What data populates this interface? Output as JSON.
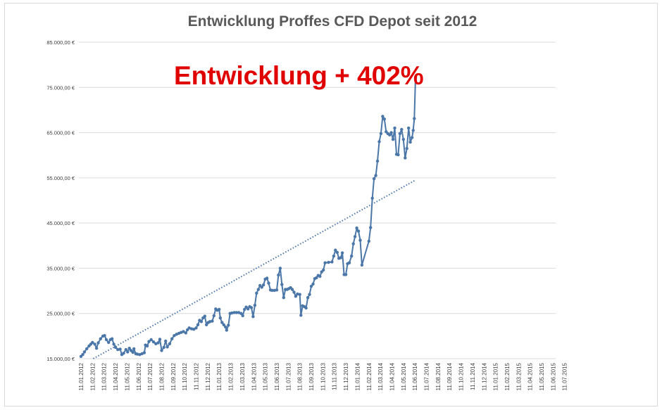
{
  "chart_data": {
    "type": "line",
    "title": "Entwicklung Proffes CFD Depot seit 2012",
    "annotation": "Entwicklung + 402%",
    "xlabel": "",
    "ylabel": "",
    "ylim": [
      15000,
      85000
    ],
    "grid": true,
    "legend": "none",
    "y_ticks": [
      15000,
      25000,
      35000,
      45000,
      55000,
      65000,
      75000,
      85000
    ],
    "y_tick_labels": [
      "15.000,00 €",
      "25.000,00 €",
      "35.000,00 €",
      "45.000,00 €",
      "55.000,00 €",
      "65.000,00 €",
      "75.000,00 €",
      "85.000,00 €"
    ],
    "x_tick_labels": [
      "11.01.2012",
      "11.02.2012",
      "11.03.2012",
      "11.04.2012",
      "11.05.2012",
      "11.06.2012",
      "11.07.2012",
      "11.08.2012",
      "11.09.2012",
      "11.10.2012",
      "11.11.2012",
      "11.12.2012",
      "11.01.2013",
      "11.02.2013",
      "11.03.2013",
      "11.04.2013",
      "11.05.2013",
      "11.06.2013",
      "11.07.2013",
      "11.08.2013",
      "11.09.2013",
      "11.10.2013",
      "11.11.2013",
      "11.12.2013",
      "11.01.2014",
      "11.02.2014",
      "11.03.2014",
      "11.04.2014",
      "11.05.2014",
      "11.06.2014",
      "11.07.2014",
      "11.08.2014",
      "11.09.2014",
      "11.10.2014",
      "11.11.2014",
      "11.12.2014",
      "11.01.2015",
      "11.02.2015",
      "11.03.2015",
      "11.04.2015",
      "11.05.2015",
      "11.06.2015",
      "11.07.2015"
    ],
    "series": [
      {
        "color": "#4a76a8",
        "points": [
          [
            0,
            15500
          ],
          [
            0.15,
            15900
          ],
          [
            0.3,
            16500
          ],
          [
            0.5,
            17200
          ],
          [
            0.7,
            17800
          ],
          [
            0.85,
            18200
          ],
          [
            1.0,
            18600
          ],
          [
            1.2,
            18200
          ],
          [
            1.35,
            17300
          ],
          [
            1.5,
            18500
          ],
          [
            1.7,
            19400
          ],
          [
            1.9,
            20000
          ],
          [
            2.05,
            20100
          ],
          [
            2.2,
            19200
          ],
          [
            2.4,
            18600
          ],
          [
            2.55,
            19200
          ],
          [
            2.7,
            19400
          ],
          [
            2.85,
            18200
          ],
          [
            3.0,
            17500
          ],
          [
            3.2,
            17000
          ],
          [
            3.4,
            17100
          ],
          [
            3.55,
            15900
          ],
          [
            3.7,
            16200
          ],
          [
            3.9,
            17000
          ],
          [
            4.05,
            16500
          ],
          [
            4.2,
            17300
          ],
          [
            4.35,
            16800
          ],
          [
            4.5,
            16400
          ],
          [
            4.6,
            17200
          ],
          [
            4.75,
            16100
          ],
          [
            4.9,
            16000
          ],
          [
            5.1,
            15900
          ],
          [
            5.3,
            16100
          ],
          [
            5.5,
            16300
          ],
          [
            5.6,
            18000
          ],
          [
            5.75,
            17800
          ],
          [
            5.9,
            18800
          ],
          [
            6.1,
            19200
          ],
          [
            6.3,
            18700
          ],
          [
            6.5,
            18300
          ],
          [
            6.7,
            18500
          ],
          [
            6.85,
            19300
          ],
          [
            7.0,
            16800
          ],
          [
            7.2,
            17500
          ],
          [
            7.35,
            18900
          ],
          [
            7.5,
            17600
          ],
          [
            7.7,
            18300
          ],
          [
            7.9,
            19400
          ],
          [
            8.1,
            20100
          ],
          [
            8.3,
            20400
          ],
          [
            8.5,
            20600
          ],
          [
            8.7,
            20800
          ],
          [
            8.9,
            21000
          ],
          [
            9.1,
            20700
          ],
          [
            9.25,
            21400
          ],
          [
            9.4,
            21800
          ],
          [
            9.6,
            21600
          ],
          [
            9.8,
            21500
          ],
          [
            10.0,
            21800
          ],
          [
            10.15,
            22500
          ],
          [
            10.3,
            23500
          ],
          [
            10.45,
            23200
          ],
          [
            10.6,
            24000
          ],
          [
            10.75,
            24400
          ],
          [
            10.9,
            22500
          ],
          [
            11.05,
            23000
          ],
          [
            11.2,
            23200
          ],
          [
            11.4,
            23300
          ],
          [
            11.55,
            24500
          ],
          [
            11.7,
            26000
          ],
          [
            11.85,
            25700
          ],
          [
            12.0,
            25900
          ],
          [
            12.1,
            24000
          ],
          [
            12.25,
            23000
          ],
          [
            12.4,
            22500
          ],
          [
            12.55,
            22000
          ],
          [
            12.65,
            21300
          ],
          [
            12.8,
            22400
          ],
          [
            12.95,
            25000
          ],
          [
            13.1,
            25100
          ],
          [
            13.3,
            25200
          ],
          [
            13.5,
            25200
          ],
          [
            13.7,
            25200
          ],
          [
            13.9,
            25000
          ],
          [
            14.05,
            24500
          ],
          [
            14.2,
            25900
          ],
          [
            14.35,
            26400
          ],
          [
            14.5,
            26000
          ],
          [
            14.65,
            26500
          ],
          [
            14.8,
            26300
          ],
          [
            14.95,
            24300
          ],
          [
            15.1,
            26800
          ],
          [
            15.25,
            29500
          ],
          [
            15.4,
            30300
          ],
          [
            15.55,
            31200
          ],
          [
            15.7,
            30800
          ],
          [
            15.85,
            31300
          ],
          [
            16.0,
            32600
          ],
          [
            16.15,
            32800
          ],
          [
            16.3,
            31700
          ],
          [
            16.45,
            30200
          ],
          [
            16.6,
            30100
          ],
          [
            16.8,
            30100
          ],
          [
            17.0,
            30200
          ],
          [
            17.15,
            33500
          ],
          [
            17.3,
            35000
          ],
          [
            17.45,
            31400
          ],
          [
            17.6,
            28500
          ],
          [
            17.75,
            30300
          ],
          [
            17.9,
            30300
          ],
          [
            18.05,
            30500
          ],
          [
            18.2,
            30700
          ],
          [
            18.35,
            30300
          ],
          [
            18.5,
            29700
          ],
          [
            18.65,
            28800
          ],
          [
            18.8,
            29300
          ],
          [
            19.0,
            29200
          ],
          [
            19.1,
            24600
          ],
          [
            19.25,
            26700
          ],
          [
            19.4,
            26500
          ],
          [
            19.55,
            26200
          ],
          [
            19.7,
            28500
          ],
          [
            19.85,
            29200
          ],
          [
            20.0,
            31000
          ],
          [
            20.15,
            31500
          ],
          [
            20.3,
            32700
          ],
          [
            20.45,
            32900
          ],
          [
            20.6,
            33400
          ],
          [
            20.75,
            33200
          ],
          [
            20.9,
            34200
          ],
          [
            21.05,
            34600
          ],
          [
            21.2,
            36200
          ],
          [
            21.5,
            36300
          ],
          [
            21.8,
            36400
          ],
          [
            21.95,
            37700
          ],
          [
            22.1,
            39000
          ],
          [
            22.25,
            38500
          ],
          [
            22.4,
            37200
          ],
          [
            22.55,
            37300
          ],
          [
            22.7,
            38400
          ],
          [
            22.85,
            33600
          ],
          [
            23.0,
            33600
          ],
          [
            23.15,
            36000
          ],
          [
            23.3,
            36200
          ],
          [
            23.5,
            37700
          ],
          [
            23.65,
            40400
          ],
          [
            23.8,
            42000
          ],
          [
            23.95,
            43900
          ],
          [
            24.1,
            43200
          ],
          [
            24.25,
            41200
          ],
          [
            24.4,
            35700
          ],
          [
            25.0,
            41000
          ],
          [
            25.15,
            44000
          ],
          [
            25.3,
            50500
          ],
          [
            25.45,
            54800
          ],
          [
            25.6,
            55500
          ],
          [
            25.75,
            58700
          ],
          [
            25.9,
            63000
          ],
          [
            26.05,
            64800
          ],
          [
            26.2,
            68600
          ],
          [
            26.35,
            68000
          ],
          [
            26.5,
            65200
          ],
          [
            26.65,
            64800
          ],
          [
            26.8,
            64500
          ],
          [
            26.95,
            65000
          ],
          [
            27.1,
            63500
          ],
          [
            27.25,
            66000
          ],
          [
            27.4,
            60200
          ],
          [
            27.55,
            60100
          ],
          [
            27.7,
            64800
          ],
          [
            27.85,
            65700
          ],
          [
            28.0,
            63500
          ],
          [
            28.15,
            59400
          ],
          [
            28.3,
            61500
          ],
          [
            28.45,
            66000
          ],
          [
            28.6,
            62900
          ],
          [
            28.75,
            63900
          ],
          [
            28.85,
            65500
          ],
          [
            28.95,
            68100
          ],
          [
            29.05,
            77200
          ]
        ]
      }
    ],
    "trendline": {
      "type": "linear",
      "style": "dotted",
      "from": [
        0,
        13500
      ],
      "to": [
        29.05,
        54500
      ]
    }
  }
}
